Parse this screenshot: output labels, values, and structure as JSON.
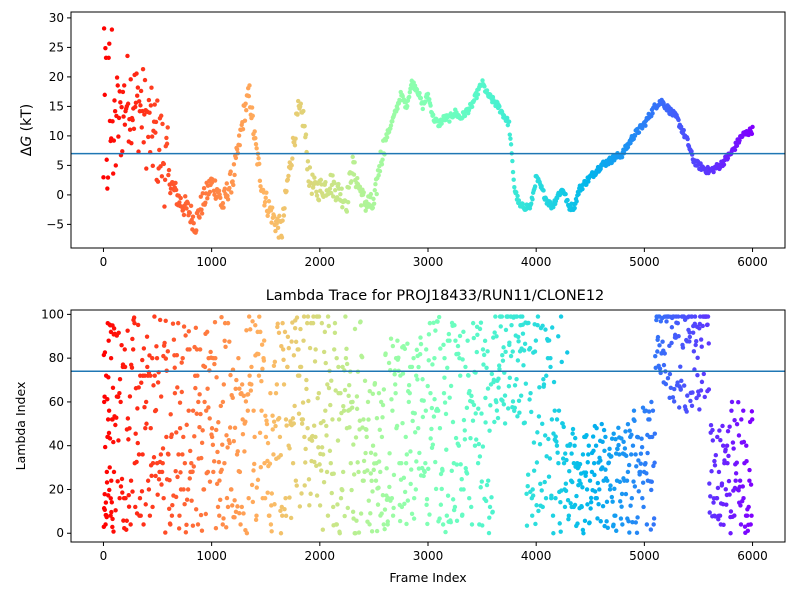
{
  "chart_data": [
    {
      "type": "scatter",
      "title": "",
      "xlabel": "",
      "ylabel": "ΔG (kT)",
      "ylabel_symbol": "Δ",
      "ylabel_var": "G",
      "ylabel_unit": " (kT)",
      "xlim": [
        -300,
        6300
      ],
      "ylim": [
        -9,
        31
      ],
      "xticks": [
        0,
        1000,
        2000,
        3000,
        4000,
        5000,
        6000
      ],
      "yticks": [
        -5,
        0,
        5,
        10,
        15,
        20,
        25,
        30
      ],
      "hline": 7.0,
      "hline_color": "#1f77b4",
      "colormap": "rainbow (red at frame 0 → violet at frame 6000)",
      "grid": false,
      "trace_profile": [
        [
          0,
          10
        ],
        [
          50,
          13
        ],
        [
          100,
          16
        ],
        [
          150,
          12
        ],
        [
          200,
          16
        ],
        [
          250,
          17
        ],
        [
          300,
          15
        ],
        [
          350,
          15
        ],
        [
          400,
          12
        ],
        [
          450,
          10
        ],
        [
          500,
          9
        ],
        [
          550,
          7
        ],
        [
          600,
          3
        ],
        [
          650,
          1
        ],
        [
          700,
          -1
        ],
        [
          750,
          -2
        ],
        [
          800,
          -3
        ],
        [
          850,
          -5
        ],
        [
          900,
          -2
        ],
        [
          950,
          0
        ],
        [
          1000,
          2
        ],
        [
          1050,
          1
        ],
        [
          1100,
          -2
        ],
        [
          1150,
          1
        ],
        [
          1200,
          3
        ],
        [
          1250,
          8
        ],
        [
          1300,
          14
        ],
        [
          1350,
          17
        ],
        [
          1400,
          9
        ],
        [
          1450,
          3
        ],
        [
          1500,
          -1
        ],
        [
          1550,
          -3
        ],
        [
          1600,
          -5
        ],
        [
          1650,
          -6
        ],
        [
          1700,
          2
        ],
        [
          1750,
          8
        ],
        [
          1800,
          14
        ],
        [
          1850,
          13
        ],
        [
          1900,
          3
        ],
        [
          1950,
          1
        ],
        [
          2000,
          1
        ],
        [
          2100,
          2
        ],
        [
          2200,
          0
        ],
        [
          2250,
          -1
        ],
        [
          2300,
          5
        ],
        [
          2400,
          -1
        ],
        [
          2500,
          -2
        ],
        [
          2550,
          5
        ],
        [
          2600,
          9
        ],
        [
          2700,
          14
        ],
        [
          2750,
          17
        ],
        [
          2800,
          15
        ],
        [
          2850,
          19
        ],
        [
          2900,
          18
        ],
        [
          2950,
          15
        ],
        [
          3000,
          17
        ],
        [
          3050,
          13
        ],
        [
          3100,
          12
        ],
        [
          3150,
          13
        ],
        [
          3200,
          13
        ],
        [
          3250,
          14
        ],
        [
          3300,
          13
        ],
        [
          3400,
          15
        ],
        [
          3500,
          19
        ],
        [
          3550,
          17
        ],
        [
          3650,
          15
        ],
        [
          3750,
          12
        ],
        [
          3800,
          1
        ],
        [
          3850,
          -2
        ],
        [
          3900,
          -2
        ],
        [
          3950,
          -2
        ],
        [
          4000,
          3
        ],
        [
          4050,
          1
        ],
        [
          4100,
          -1
        ],
        [
          4150,
          -2
        ],
        [
          4200,
          0
        ],
        [
          4250,
          1
        ],
        [
          4300,
          -2
        ],
        [
          4350,
          -2
        ],
        [
          4400,
          1
        ],
        [
          4500,
          3
        ],
        [
          4600,
          5
        ],
        [
          4700,
          6
        ],
        [
          4800,
          7
        ],
        [
          4900,
          10
        ],
        [
          5000,
          12
        ],
        [
          5100,
          15
        ],
        [
          5150,
          16
        ],
        [
          5200,
          15
        ],
        [
          5300,
          13
        ],
        [
          5400,
          9
        ],
        [
          5450,
          6
        ],
        [
          5500,
          5
        ],
        [
          5600,
          4
        ],
        [
          5700,
          5
        ],
        [
          5800,
          7
        ],
        [
          5900,
          10
        ],
        [
          6000,
          11
        ]
      ]
    },
    {
      "type": "scatter",
      "title": "Lambda Trace for PROJ18433/RUN11/CLONE12",
      "xlabel": "Frame Index",
      "ylabel": "Lambda Index",
      "xlim": [
        -300,
        6300
      ],
      "ylim": [
        -4,
        102
      ],
      "xticks": [
        0,
        1000,
        2000,
        3000,
        4000,
        5000,
        6000
      ],
      "yticks": [
        0,
        20,
        40,
        60,
        80,
        100
      ],
      "hline": 74,
      "hline_color": "#1f77b4",
      "colormap": "rainbow (red at frame 0 → violet at frame 6000)",
      "grid": false,
      "lambda_ranges": [
        [
          0,
          100,
          0,
          99
        ],
        [
          100,
          1200,
          0,
          99
        ],
        [
          1200,
          1300,
          0,
          80
        ],
        [
          1300,
          1500,
          0,
          99
        ],
        [
          1500,
          1600,
          0,
          80
        ],
        [
          1600,
          1800,
          0,
          99
        ],
        [
          1800,
          2000,
          10,
          99
        ],
        [
          2000,
          2400,
          0,
          99
        ],
        [
          2400,
          2600,
          0,
          70
        ],
        [
          2600,
          3000,
          0,
          90
        ],
        [
          3000,
          3500,
          0,
          99
        ],
        [
          3500,
          3600,
          0,
          90
        ],
        [
          3600,
          3900,
          50,
          99
        ],
        [
          3900,
          4300,
          0,
          99
        ],
        [
          4300,
          4900,
          0,
          50
        ],
        [
          4900,
          5100,
          0,
          60
        ],
        [
          5100,
          5300,
          60,
          99
        ],
        [
          5300,
          5600,
          55,
          99
        ],
        [
          5600,
          5800,
          0,
          50
        ],
        [
          5800,
          6000,
          0,
          60
        ]
      ]
    }
  ]
}
